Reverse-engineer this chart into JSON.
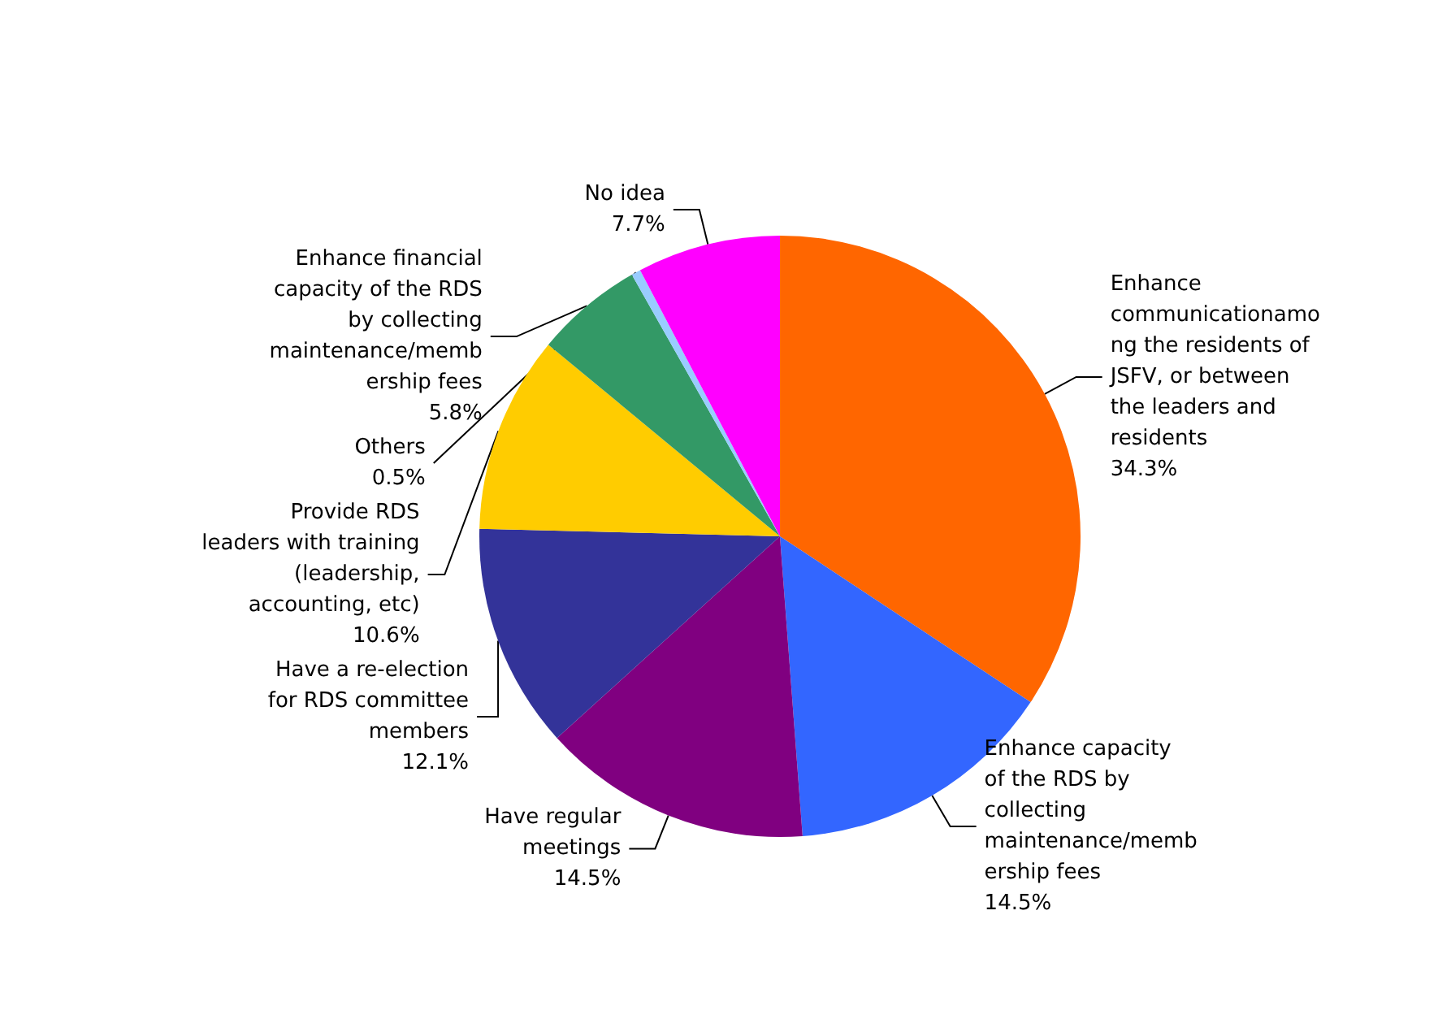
{
  "chart_data": {
    "type": "pie",
    "categories": [
      "Enhance\ncommunicationamo\nng the residents of\nJSFV, or between\nthe leaders and\nresidents",
      "Enhance capacity\nof the RDS by\ncollecting\nmaintenance/memb\nership fees",
      "Have regular\nmeetings",
      "Have a re-election\nfor RDS committee\nmembers",
      "Provide RDS\nleaders with training\n(leadership,\naccounting, etc)",
      "Enhance financial\ncapacity of the RDS\nby collecting\nmaintenance/memb\nership fees",
      "Others",
      "No idea"
    ],
    "values": [
      34.3,
      14.5,
      14.5,
      12.1,
      10.6,
      5.8,
      0.5,
      7.7
    ],
    "value_labels": [
      "34.3%",
      "14.5%",
      "14.5%",
      "12.1%",
      "10.6%",
      "5.8%",
      "0.5%",
      "7.7%"
    ],
    "colors": [
      "#ff6600",
      "#3366ff",
      "#800080",
      "#333399",
      "#ffcc00",
      "#339966",
      "#99ccff",
      "#ff00ff"
    ],
    "legend": false
  }
}
